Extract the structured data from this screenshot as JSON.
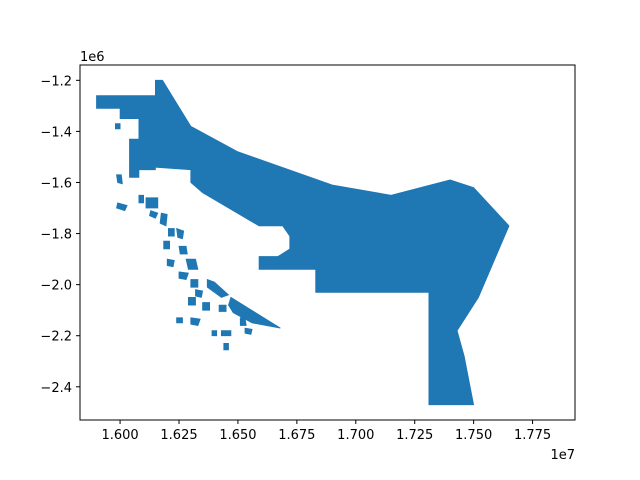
{
  "colors": {
    "fill": "#1f77b4",
    "axes": "#000000",
    "background": "#ffffff"
  },
  "chart_data": {
    "type": "map",
    "grid": false,
    "xlim": [
      15830000,
      17930000
    ],
    "ylim": [
      -2530000,
      -1140000
    ],
    "x_ticks": [
      {
        "value": 16000000,
        "label": "1.600"
      },
      {
        "value": 16250000,
        "label": "1.625"
      },
      {
        "value": 16500000,
        "label": "1.650"
      },
      {
        "value": 16750000,
        "label": "1.675"
      },
      {
        "value": 17000000,
        "label": "1.700"
      },
      {
        "value": 17250000,
        "label": "1.725"
      },
      {
        "value": 17500000,
        "label": "1.750"
      },
      {
        "value": 17750000,
        "label": "1.775"
      }
    ],
    "y_ticks": [
      {
        "value": -1200000,
        "label": "−1.2"
      },
      {
        "value": -1400000,
        "label": "−1.4"
      },
      {
        "value": -1600000,
        "label": "−1.6"
      },
      {
        "value": -1800000,
        "label": "−1.8"
      },
      {
        "value": -2000000,
        "label": "−2.0"
      },
      {
        "value": -2200000,
        "label": "−2.2"
      },
      {
        "value": -2400000,
        "label": "−2.4"
      }
    ],
    "x_offset_label": "1e7",
    "y_offset_label": "1e6",
    "shapes": [
      {
        "name": "mainland-region",
        "coords": [
          [
            16150000,
            -1200000
          ],
          [
            16180000,
            -1200000
          ],
          [
            16300000,
            -1380000
          ],
          [
            16500000,
            -1480000
          ],
          [
            16900000,
            -1610000
          ],
          [
            17150000,
            -1650000
          ],
          [
            17400000,
            -1590000
          ],
          [
            17500000,
            -1620000
          ],
          [
            17650000,
            -1770000
          ],
          [
            17520000,
            -2050000
          ],
          [
            17430000,
            -2180000
          ],
          [
            17460000,
            -2280000
          ],
          [
            17500000,
            -2470000
          ],
          [
            17310000,
            -2470000
          ],
          [
            17310000,
            -2030000
          ],
          [
            16830000,
            -2030000
          ],
          [
            16830000,
            -1940000
          ],
          [
            16590000,
            -1940000
          ],
          [
            16590000,
            -1890000
          ],
          [
            16670000,
            -1890000
          ],
          [
            16720000,
            -1860000
          ],
          [
            16720000,
            -1810000
          ],
          [
            16690000,
            -1770000
          ],
          [
            16590000,
            -1770000
          ],
          [
            16350000,
            -1640000
          ],
          [
            16300000,
            -1600000
          ],
          [
            16300000,
            -1550000
          ],
          [
            16150000,
            -1540000
          ]
        ]
      },
      {
        "name": "northwest-block",
        "coords": [
          [
            15900000,
            -1260000
          ],
          [
            16150000,
            -1260000
          ],
          [
            16150000,
            -1550000
          ],
          [
            16080000,
            -1550000
          ],
          [
            16080000,
            -1580000
          ],
          [
            16040000,
            -1580000
          ],
          [
            16040000,
            -1430000
          ],
          [
            16080000,
            -1430000
          ],
          [
            16080000,
            -1350000
          ],
          [
            16000000,
            -1350000
          ],
          [
            16000000,
            -1310000
          ],
          [
            15900000,
            -1310000
          ]
        ]
      },
      {
        "name": "islet-1",
        "coords": [
          [
            15980000,
            -1370000
          ],
          [
            16000000,
            -1370000
          ],
          [
            16000000,
            -1390000
          ],
          [
            15980000,
            -1390000
          ]
        ]
      },
      {
        "name": "islet-2",
        "coords": [
          [
            15985000,
            -1570000
          ],
          [
            16005000,
            -1570000
          ],
          [
            16010000,
            -1605000
          ],
          [
            15990000,
            -1600000
          ]
        ]
      },
      {
        "name": "islet-3",
        "coords": [
          [
            15990000,
            -1680000
          ],
          [
            16030000,
            -1690000
          ],
          [
            16020000,
            -1710000
          ],
          [
            15985000,
            -1700000
          ]
        ]
      },
      {
        "name": "islet-4",
        "coords": [
          [
            16080000,
            -1650000
          ],
          [
            16100000,
            -1650000
          ],
          [
            16100000,
            -1680000
          ],
          [
            16080000,
            -1680000
          ]
        ]
      },
      {
        "name": "islet-5",
        "coords": [
          [
            16110000,
            -1660000
          ],
          [
            16160000,
            -1660000
          ],
          [
            16160000,
            -1700000
          ],
          [
            16110000,
            -1700000
          ]
        ]
      },
      {
        "name": "islet-6",
        "coords": [
          [
            16130000,
            -1710000
          ],
          [
            16160000,
            -1720000
          ],
          [
            16150000,
            -1740000
          ],
          [
            16125000,
            -1730000
          ]
        ]
      },
      {
        "name": "islet-7",
        "coords": [
          [
            16175000,
            -1720000
          ],
          [
            16200000,
            -1725000
          ],
          [
            16195000,
            -1770000
          ],
          [
            16170000,
            -1760000
          ]
        ]
      },
      {
        "name": "islet-8",
        "coords": [
          [
            16205000,
            -1780000
          ],
          [
            16230000,
            -1780000
          ],
          [
            16230000,
            -1810000
          ],
          [
            16205000,
            -1810000
          ]
        ]
      },
      {
        "name": "islet-9",
        "coords": [
          [
            16240000,
            -1780000
          ],
          [
            16270000,
            -1790000
          ],
          [
            16265000,
            -1820000
          ],
          [
            16245000,
            -1815000
          ]
        ]
      },
      {
        "name": "islet-10",
        "coords": [
          [
            16185000,
            -1830000
          ],
          [
            16210000,
            -1830000
          ],
          [
            16210000,
            -1860000
          ],
          [
            16185000,
            -1860000
          ]
        ]
      },
      {
        "name": "islet-11",
        "coords": [
          [
            16250000,
            -1850000
          ],
          [
            16280000,
            -1850000
          ],
          [
            16285000,
            -1880000
          ],
          [
            16255000,
            -1880000
          ]
        ]
      },
      {
        "name": "islet-12",
        "coords": [
          [
            16280000,
            -1900000
          ],
          [
            16320000,
            -1900000
          ],
          [
            16330000,
            -1940000
          ],
          [
            16290000,
            -1940000
          ]
        ]
      },
      {
        "name": "islet-13",
        "coords": [
          [
            16200000,
            -1900000
          ],
          [
            16230000,
            -1905000
          ],
          [
            16225000,
            -1930000
          ],
          [
            16200000,
            -1925000
          ]
        ]
      },
      {
        "name": "islet-14",
        "coords": [
          [
            16250000,
            -1950000
          ],
          [
            16290000,
            -1955000
          ],
          [
            16280000,
            -1980000
          ],
          [
            16250000,
            -1975000
          ]
        ]
      },
      {
        "name": "islet-15",
        "coords": [
          [
            16300000,
            -1980000
          ],
          [
            16330000,
            -1980000
          ],
          [
            16330000,
            -2010000
          ],
          [
            16300000,
            -2010000
          ]
        ]
      },
      {
        "name": "islet-16",
        "coords": [
          [
            16370000,
            -1980000
          ],
          [
            16400000,
            -1990000
          ],
          [
            16460000,
            -2040000
          ],
          [
            16430000,
            -2050000
          ],
          [
            16370000,
            -2010000
          ]
        ]
      },
      {
        "name": "islet-17",
        "coords": [
          [
            16320000,
            -2020000
          ],
          [
            16350000,
            -2025000
          ],
          [
            16345000,
            -2050000
          ],
          [
            16320000,
            -2045000
          ]
        ]
      },
      {
        "name": "islet-18",
        "coords": [
          [
            16290000,
            -2050000
          ],
          [
            16320000,
            -2050000
          ],
          [
            16320000,
            -2080000
          ],
          [
            16290000,
            -2080000
          ]
        ]
      },
      {
        "name": "islet-19",
        "coords": [
          [
            16350000,
            -2070000
          ],
          [
            16380000,
            -2070000
          ],
          [
            16380000,
            -2100000
          ],
          [
            16350000,
            -2100000
          ]
        ]
      },
      {
        "name": "islet-20",
        "coords": [
          [
            16420000,
            -2080000
          ],
          [
            16450000,
            -2080000
          ],
          [
            16450000,
            -2105000
          ],
          [
            16420000,
            -2105000
          ]
        ]
      },
      {
        "name": "islet-21",
        "coords": [
          [
            16300000,
            -2130000
          ],
          [
            16340000,
            -2135000
          ],
          [
            16330000,
            -2160000
          ],
          [
            16300000,
            -2155000
          ]
        ]
      },
      {
        "name": "islet-22",
        "coords": [
          [
            16240000,
            -2130000
          ],
          [
            16265000,
            -2130000
          ],
          [
            16265000,
            -2150000
          ],
          [
            16240000,
            -2150000
          ]
        ]
      },
      {
        "name": "islet-23",
        "coords": [
          [
            16470000,
            -2050000
          ],
          [
            16680000,
            -2170000
          ],
          [
            16560000,
            -2150000
          ],
          [
            16480000,
            -2110000
          ],
          [
            16460000,
            -2080000
          ]
        ]
      },
      {
        "name": "islet-24",
        "coords": [
          [
            16510000,
            -2130000
          ],
          [
            16530000,
            -2130000
          ],
          [
            16535000,
            -2160000
          ],
          [
            16510000,
            -2160000
          ]
        ]
      },
      {
        "name": "islet-25",
        "coords": [
          [
            16390000,
            -2180000
          ],
          [
            16410000,
            -2180000
          ],
          [
            16410000,
            -2200000
          ],
          [
            16390000,
            -2200000
          ]
        ]
      },
      {
        "name": "islet-26",
        "coords": [
          [
            16430000,
            -2180000
          ],
          [
            16470000,
            -2180000
          ],
          [
            16470000,
            -2200000
          ],
          [
            16430000,
            -2200000
          ]
        ]
      },
      {
        "name": "islet-27",
        "coords": [
          [
            16530000,
            -2170000
          ],
          [
            16560000,
            -2175000
          ],
          [
            16555000,
            -2195000
          ],
          [
            16530000,
            -2190000
          ]
        ]
      },
      {
        "name": "islet-28",
        "coords": [
          [
            16440000,
            -2230000
          ],
          [
            16460000,
            -2230000
          ],
          [
            16460000,
            -2255000
          ],
          [
            16440000,
            -2255000
          ]
        ]
      }
    ]
  }
}
